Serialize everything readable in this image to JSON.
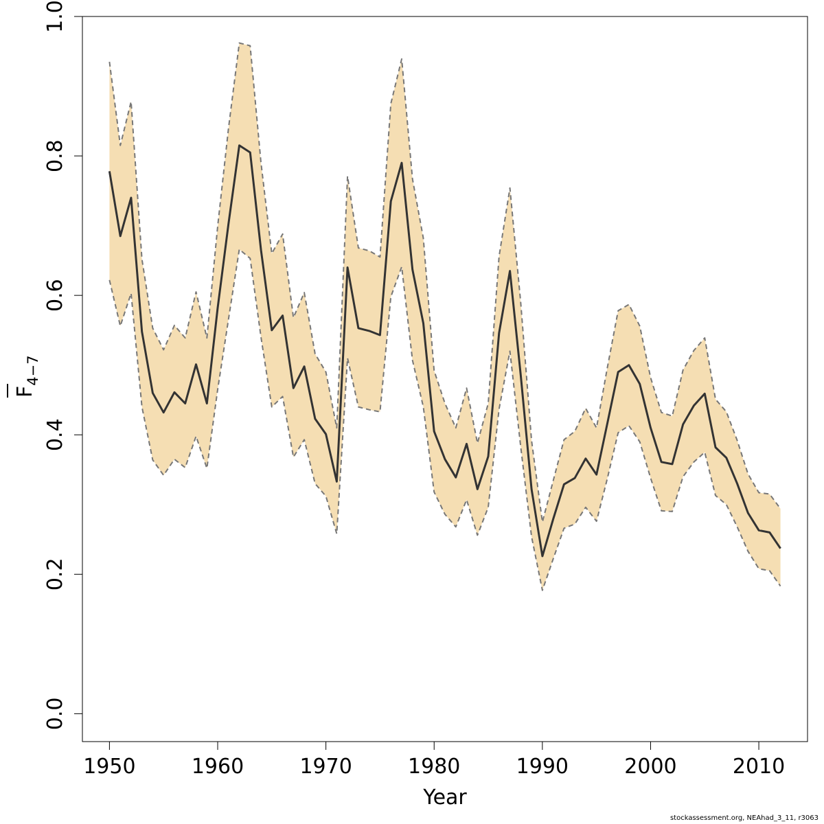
{
  "chart_data": {
    "type": "area",
    "title": "",
    "xlabel": "Year",
    "ylabel": "F",
    "ylabel_subscript": "4−7",
    "xlim": [
      1947.5,
      2014.5
    ],
    "ylim": [
      -0.04,
      1.0
    ],
    "x_ticks": [
      "1950",
      "1960",
      "1970",
      "1980",
      "1990",
      "2000",
      "2010"
    ],
    "y_ticks": [
      "0.0",
      "0.2",
      "0.4",
      "0.6",
      "0.8",
      "1.0"
    ],
    "grid": false,
    "band_color": "#f5deb3",
    "line_color": "#333333",
    "bound_color": "#777777",
    "x": [
      1950,
      1951,
      1952,
      1953,
      1954,
      1955,
      1956,
      1957,
      1958,
      1959,
      1960,
      1961,
      1962,
      1963,
      1964,
      1965,
      1966,
      1967,
      1968,
      1969,
      1970,
      1971,
      1972,
      1973,
      1974,
      1975,
      1976,
      1977,
      1978,
      1979,
      1980,
      1981,
      1982,
      1983,
      1984,
      1985,
      1986,
      1987,
      1988,
      1989,
      1990,
      1991,
      1992,
      1993,
      1994,
      1995,
      1996,
      1997,
      1998,
      1999,
      2000,
      2001,
      2002,
      2003,
      2004,
      2005,
      2006,
      2007,
      2008,
      2009,
      2010,
      2011,
      2012
    ],
    "series": [
      {
        "name": "",
        "values": [
          0.778,
          0.685,
          0.74,
          0.548,
          0.46,
          0.432,
          0.461,
          0.445,
          0.501,
          0.445,
          0.582,
          0.703,
          0.815,
          0.805,
          0.665,
          0.55,
          0.571,
          0.467,
          0.498,
          0.423,
          0.401,
          0.333,
          0.64,
          0.553,
          0.549,
          0.543,
          0.735,
          0.79,
          0.637,
          0.56,
          0.405,
          0.365,
          0.339,
          0.387,
          0.322,
          0.369,
          0.546,
          0.635,
          0.486,
          0.322,
          0.226,
          0.279,
          0.329,
          0.338,
          0.366,
          0.343,
          0.416,
          0.49,
          0.5,
          0.473,
          0.41,
          0.361,
          0.358,
          0.415,
          0.442,
          0.459,
          0.382,
          0.367,
          0.33,
          0.288,
          0.263,
          0.26,
          0.237
        ]
      },
      {
        "name": "",
        "values": [
          0.935,
          0.815,
          0.878,
          0.652,
          0.553,
          0.522,
          0.557,
          0.539,
          0.605,
          0.539,
          0.699,
          0.84,
          0.962,
          0.958,
          0.79,
          0.66,
          0.688,
          0.568,
          0.604,
          0.516,
          0.49,
          0.41,
          0.771,
          0.668,
          0.664,
          0.655,
          0.875,
          0.939,
          0.767,
          0.682,
          0.492,
          0.445,
          0.41,
          0.467,
          0.388,
          0.445,
          0.656,
          0.754,
          0.59,
          0.392,
          0.275,
          0.334,
          0.393,
          0.405,
          0.438,
          0.41,
          0.496,
          0.578,
          0.587,
          0.556,
          0.482,
          0.432,
          0.427,
          0.493,
          0.521,
          0.539,
          0.451,
          0.433,
          0.392,
          0.344,
          0.317,
          0.315,
          0.294
        ]
      },
      {
        "name": "",
        "values": [
          0.622,
          0.556,
          0.603,
          0.44,
          0.364,
          0.342,
          0.365,
          0.353,
          0.398,
          0.352,
          0.465,
          0.566,
          0.666,
          0.653,
          0.54,
          0.44,
          0.455,
          0.368,
          0.393,
          0.33,
          0.312,
          0.258,
          0.51,
          0.44,
          0.436,
          0.433,
          0.598,
          0.641,
          0.507,
          0.44,
          0.318,
          0.286,
          0.268,
          0.307,
          0.256,
          0.296,
          0.437,
          0.52,
          0.383,
          0.254,
          0.177,
          0.222,
          0.266,
          0.272,
          0.296,
          0.276,
          0.337,
          0.403,
          0.413,
          0.39,
          0.338,
          0.291,
          0.29,
          0.34,
          0.361,
          0.375,
          0.313,
          0.3,
          0.268,
          0.233,
          0.208,
          0.205,
          0.183
        ]
      }
    ]
  },
  "credit": "stockassessment.org, NEAhad_3_11, r3063"
}
